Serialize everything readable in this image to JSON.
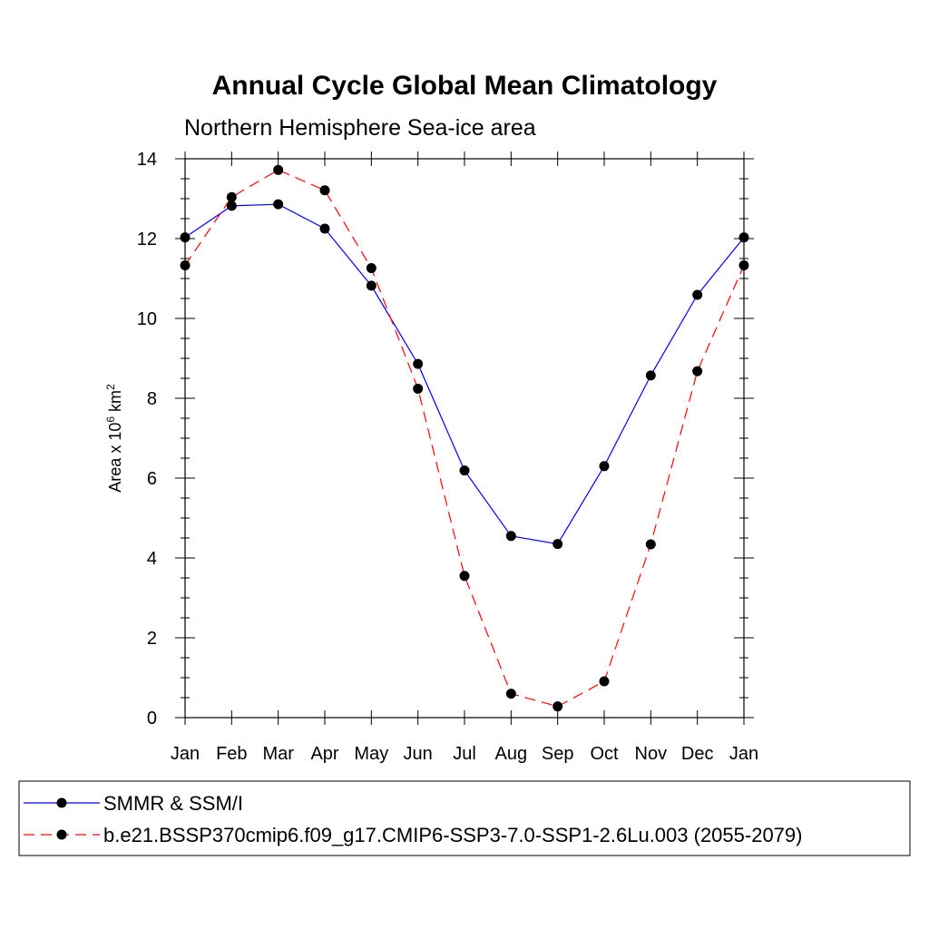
{
  "chart_data": {
    "type": "line",
    "title": "Annual Cycle Global Mean Climatology",
    "subtitle": "Northern Hemisphere Sea-ice area",
    "ylabel": {
      "prefix": "Area x 10",
      "exp1": "6",
      "mid": " km",
      "exp2": "2"
    },
    "xlabel": "",
    "categories": [
      "Jan",
      "Feb",
      "Mar",
      "Apr",
      "May",
      "Jun",
      "Jul",
      "Aug",
      "Sep",
      "Oct",
      "Nov",
      "Dec",
      "Jan"
    ],
    "ylim": [
      0,
      14
    ],
    "yticks": [
      0,
      2,
      4,
      6,
      8,
      10,
      12,
      14
    ],
    "grid": false,
    "legend_position": "bottom",
    "series": [
      {
        "name": "SMMR & SSM/I",
        "color": "#0000ff",
        "dash": "solid",
        "marker": "filled-circle",
        "values": [
          12.03,
          12.82,
          12.86,
          12.25,
          10.82,
          8.86,
          6.19,
          4.55,
          4.35,
          6.3,
          8.57,
          10.59,
          12.03
        ]
      },
      {
        "name": "b.e21.BSSP370cmip6.f09_g17.CMIP6-SSP3-7.0-SSP1-2.6Lu.003 (2055-2079)",
        "color": "#ff0000",
        "dash": "dashed",
        "marker": "filled-circle",
        "values": [
          11.33,
          13.04,
          13.72,
          13.21,
          11.26,
          8.24,
          3.55,
          0.6,
          0.28,
          0.91,
          4.34,
          8.68,
          11.33
        ]
      }
    ]
  }
}
